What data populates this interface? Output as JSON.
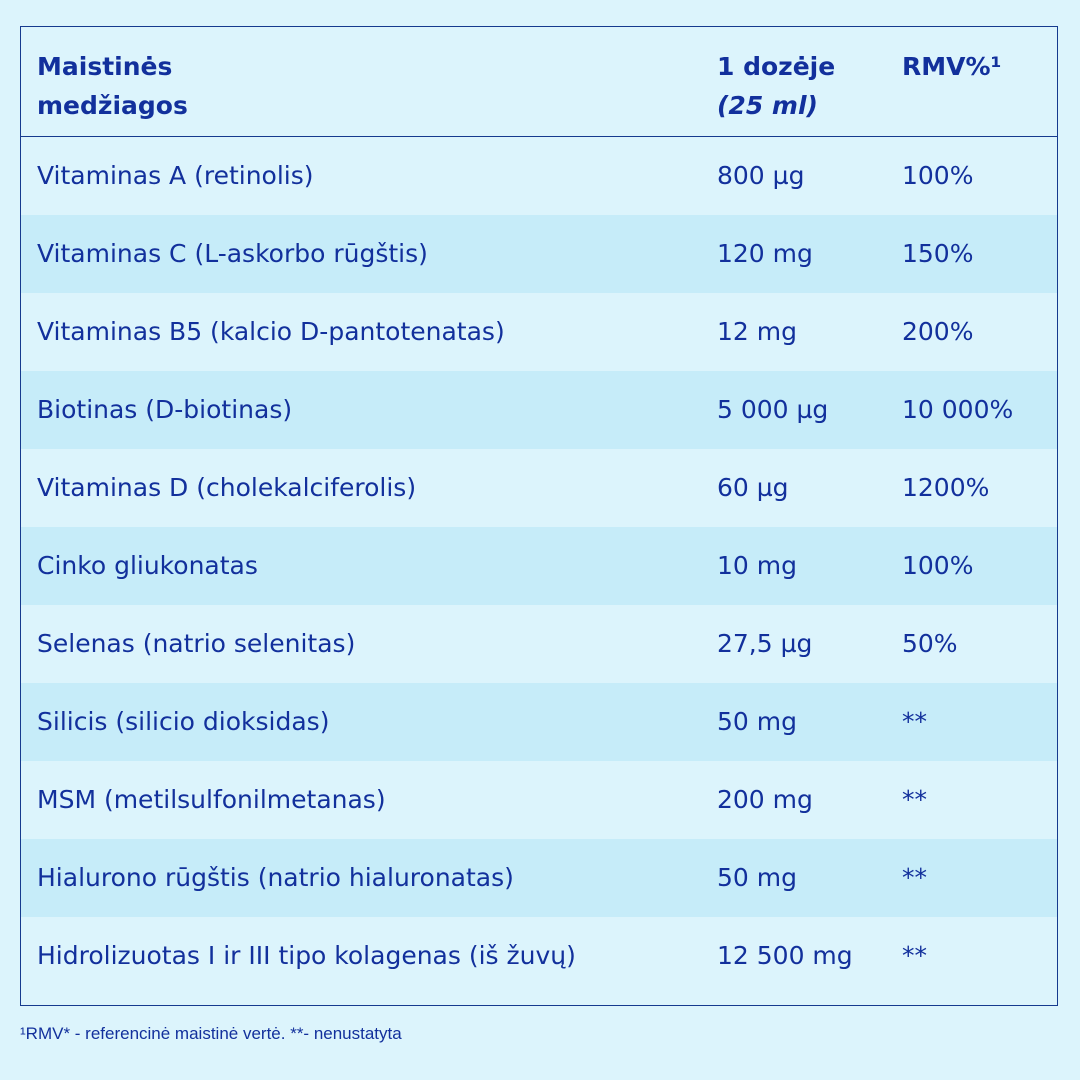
{
  "header": {
    "name_line1": "Maistinės",
    "name_line2": "medžiagos",
    "dose_line1": "1 dozėje",
    "dose_line2": "(25 ml)",
    "rmv": "RMV%¹"
  },
  "rows": [
    {
      "name": "Vitaminas A (retinolis)",
      "dose": "800 µg",
      "rmv": "100%"
    },
    {
      "name": "Vitaminas C (L-askorbo rūgštis)",
      "dose": "120 mg",
      "rmv": "150%"
    },
    {
      "name": "Vitaminas B5 (kalcio D-pantotenatas)",
      "dose": "12 mg",
      "rmv": "200%"
    },
    {
      "name": "Biotinas (D-biotinas)",
      "dose": "5 000 µg",
      "rmv": "10 000%"
    },
    {
      "name": "Vitaminas D (cholekalciferolis)",
      "dose": "60 µg",
      "rmv": "1200%"
    },
    {
      "name": "Cinko gliukonatas",
      "dose": "10 mg",
      "rmv": "100%"
    },
    {
      "name": "Selenas (natrio selenitas)",
      "dose": "27,5 µg",
      "rmv": "50%"
    },
    {
      "name": "Silicis (silicio dioksidas)",
      "dose": "50 mg",
      "rmv": "**"
    },
    {
      "name": "MSM (metilsulfonilmetanas)",
      "dose": "200 mg",
      "rmv": "**"
    },
    {
      "name": "Hialurono rūgštis (natrio hialuronatas)",
      "dose": "50 mg",
      "rmv": "**"
    },
    {
      "name": "Hidrolizuotas I ir III tipo kolagenas (iš žuvų)",
      "dose": "12 500 mg",
      "rmv": "**"
    }
  ],
  "footnote": "¹RMV* - referencinė maistinė vertė. **- nenustatyta",
  "colors": {
    "background": "#dcf4fc",
    "row_shade": "#c6ecf9",
    "text": "#12309c",
    "border": "#163a8e"
  }
}
